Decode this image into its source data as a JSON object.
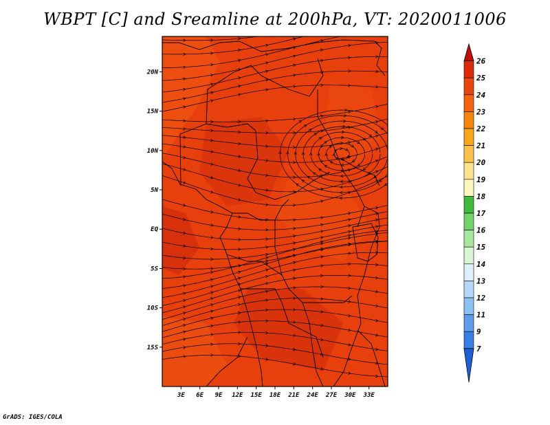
{
  "title": "WBPT [C] and Sreamline at 200hPa, VT: 2020011006",
  "footer": "GrADS: IGES/COLA",
  "map": {
    "lon_range": [
      0,
      36
    ],
    "lat_range": [
      -20,
      24.5
    ],
    "lon_ticks": [
      "3E",
      "6E",
      "9E",
      "12E",
      "15E",
      "18E",
      "21E",
      "24E",
      "27E",
      "30E",
      "33E"
    ],
    "lon_tick_values": [
      3,
      6,
      9,
      12,
      15,
      18,
      21,
      24,
      27,
      30,
      33
    ],
    "lat_ticks": [
      "20N",
      "15N",
      "10N",
      "5N",
      "EQ",
      "5S",
      "10S",
      "15S"
    ],
    "lat_tick_values": [
      20,
      15,
      10,
      5,
      0,
      -5,
      -10,
      -15
    ],
    "field_colors": {
      "base": "#e8400c",
      "dark": "#cf2b0c",
      "light": "#f05a14"
    }
  },
  "colorbar": {
    "levels": [
      "26",
      "25",
      "24",
      "23",
      "22",
      "21",
      "20",
      "19",
      "18",
      "17",
      "16",
      "15",
      "14",
      "13",
      "12",
      "11",
      "9",
      "7"
    ],
    "colors": [
      "#c20e0e",
      "#dc2b0c",
      "#e8460d",
      "#f26310",
      "#f5850d",
      "#f9a61a",
      "#fcc14a",
      "#fde28e",
      "#fff6bb",
      "#3fba3c",
      "#74d26a",
      "#a8e6a0",
      "#d7f5d0",
      "#dff0fc",
      "#b4d8f8",
      "#8cc2f3",
      "#5c9eea",
      "#3a7fe3",
      "#1f5fd6"
    ]
  }
}
